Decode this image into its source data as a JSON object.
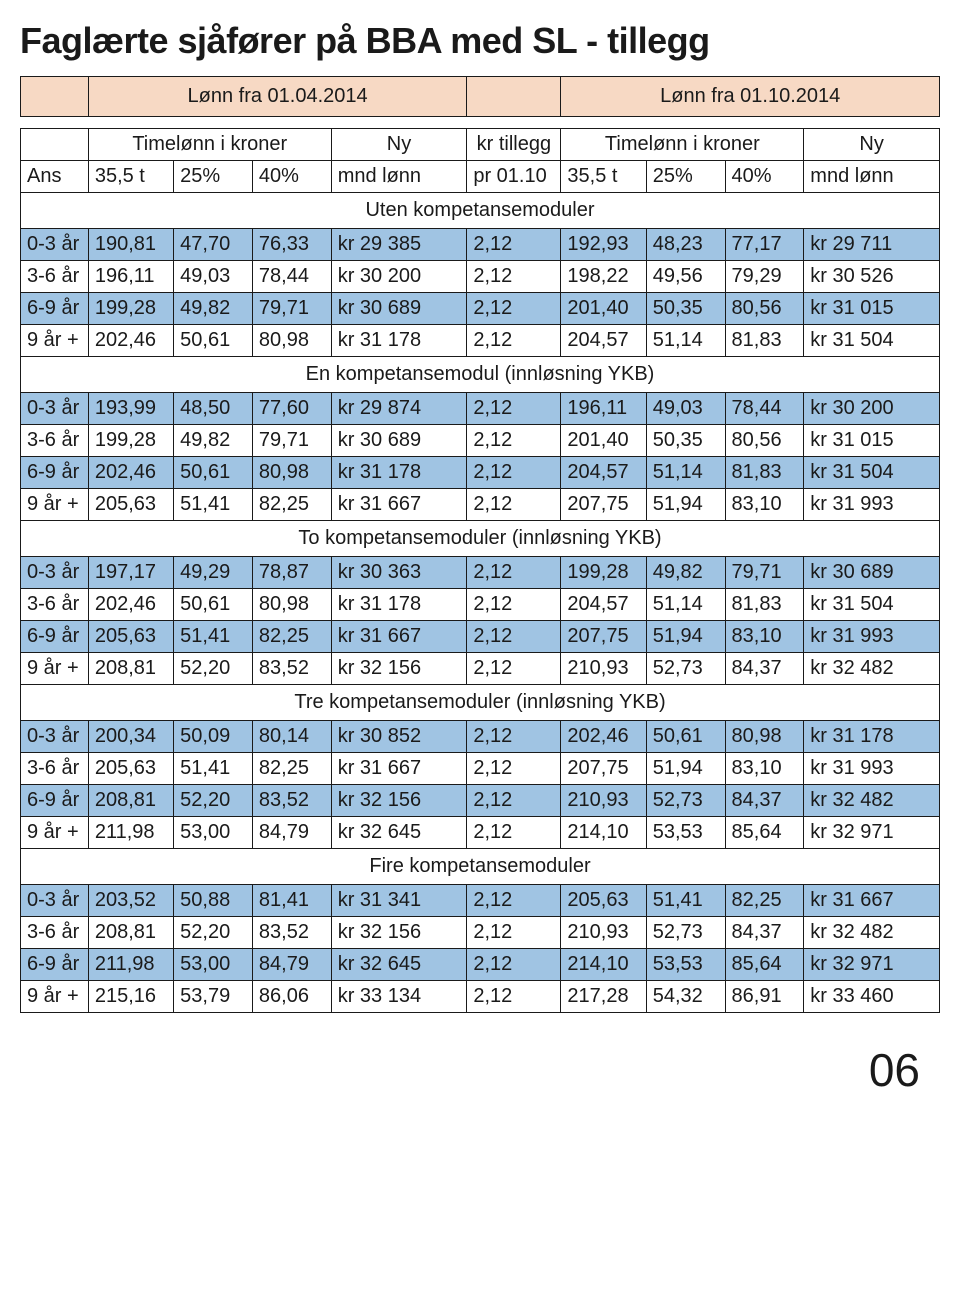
{
  "title": "Faglærte sjåfører på BBA med SL - tillegg",
  "page_number": "06",
  "colors": {
    "title_bg": "#f7d9c4",
    "band": "#a0c4e3",
    "border": "#1a1a1a",
    "text": "#1a1a1a"
  },
  "title_row": {
    "left": "Lønn fra 01.04.2014",
    "right": "Lønn fra 01.10.2014"
  },
  "header_row1": {
    "left_group": "Timelønn i kroner",
    "ny": "Ny",
    "kr_tillegg": "kr tillegg",
    "right_group": "Timelønn i kroner",
    "ny2": "Ny"
  },
  "header_row2": {
    "ans": "Ans",
    "c1": "35,5 t",
    "c2": "25%",
    "c3": "40%",
    "c4": "mnd lønn",
    "c5": "pr 01.10",
    "c6": "35,5 t",
    "c7": "25%",
    "c8": "40%",
    "c9": "mnd lønn"
  },
  "sections": [
    {
      "label": "Uten kompetansemoduler",
      "rows": [
        {
          "ans": "0-3 år",
          "a": "190,81",
          "b": "47,70",
          "c": "76,33",
          "d": "kr 29 385",
          "e": "2,12",
          "f": "192,93",
          "g": "48,23",
          "h": "77,17",
          "i": "kr 29 711"
        },
        {
          "ans": "3-6 år",
          "a": "196,11",
          "b": "49,03",
          "c": "78,44",
          "d": "kr 30 200",
          "e": "2,12",
          "f": "198,22",
          "g": "49,56",
          "h": "79,29",
          "i": "kr 30 526"
        },
        {
          "ans": "6-9 år",
          "a": "199,28",
          "b": "49,82",
          "c": "79,71",
          "d": "kr 30 689",
          "e": "2,12",
          "f": "201,40",
          "g": "50,35",
          "h": "80,56",
          "i": "kr 31 015"
        },
        {
          "ans": "9 år +",
          "a": "202,46",
          "b": "50,61",
          "c": "80,98",
          "d": "kr 31 178",
          "e": "2,12",
          "f": "204,57",
          "g": "51,14",
          "h": "81,83",
          "i": "kr 31 504"
        }
      ]
    },
    {
      "label": "En kompetansemodul (innløsning YKB)",
      "rows": [
        {
          "ans": "0-3 år",
          "a": "193,99",
          "b": "48,50",
          "c": "77,60",
          "d": "kr 29 874",
          "e": "2,12",
          "f": "196,11",
          "g": "49,03",
          "h": "78,44",
          "i": "kr 30 200"
        },
        {
          "ans": "3-6 år",
          "a": "199,28",
          "b": "49,82",
          "c": "79,71",
          "d": "kr 30 689",
          "e": "2,12",
          "f": "201,40",
          "g": "50,35",
          "h": "80,56",
          "i": "kr 31 015"
        },
        {
          "ans": "6-9 år",
          "a": "202,46",
          "b": "50,61",
          "c": "80,98",
          "d": "kr 31 178",
          "e": "2,12",
          "f": "204,57",
          "g": "51,14",
          "h": "81,83",
          "i": "kr 31 504"
        },
        {
          "ans": "9 år +",
          "a": "205,63",
          "b": "51,41",
          "c": "82,25",
          "d": "kr 31 667",
          "e": "2,12",
          "f": "207,75",
          "g": "51,94",
          "h": "83,10",
          "i": "kr 31 993"
        }
      ]
    },
    {
      "label": "To kompetansemoduler (innløsning YKB)",
      "rows": [
        {
          "ans": "0-3 år",
          "a": "197,17",
          "b": "49,29",
          "c": "78,87",
          "d": "kr 30 363",
          "e": "2,12",
          "f": "199,28",
          "g": "49,82",
          "h": "79,71",
          "i": "kr 30 689"
        },
        {
          "ans": "3-6 år",
          "a": "202,46",
          "b": "50,61",
          "c": "80,98",
          "d": "kr 31 178",
          "e": "2,12",
          "f": "204,57",
          "g": "51,14",
          "h": "81,83",
          "i": "kr 31 504"
        },
        {
          "ans": "6-9 år",
          "a": "205,63",
          "b": "51,41",
          "c": "82,25",
          "d": "kr 31 667",
          "e": "2,12",
          "f": "207,75",
          "g": "51,94",
          "h": "83,10",
          "i": "kr 31 993"
        },
        {
          "ans": "9 år +",
          "a": "208,81",
          "b": "52,20",
          "c": "83,52",
          "d": "kr 32 156",
          "e": "2,12",
          "f": "210,93",
          "g": "52,73",
          "h": "84,37",
          "i": "kr 32 482"
        }
      ]
    },
    {
      "label": "Tre kompetansemoduler (innløsning YKB)",
      "rows": [
        {
          "ans": "0-3 år",
          "a": "200,34",
          "b": "50,09",
          "c": "80,14",
          "d": "kr 30 852",
          "e": "2,12",
          "f": "202,46",
          "g": "50,61",
          "h": "80,98",
          "i": "kr 31 178"
        },
        {
          "ans": "3-6 år",
          "a": "205,63",
          "b": "51,41",
          "c": "82,25",
          "d": "kr 31 667",
          "e": "2,12",
          "f": "207,75",
          "g": "51,94",
          "h": "83,10",
          "i": "kr 31 993"
        },
        {
          "ans": "6-9 år",
          "a": "208,81",
          "b": "52,20",
          "c": "83,52",
          "d": "kr 32 156",
          "e": "2,12",
          "f": "210,93",
          "g": "52,73",
          "h": "84,37",
          "i": "kr 32 482"
        },
        {
          "ans": "9 år +",
          "a": "211,98",
          "b": "53,00",
          "c": "84,79",
          "d": "kr 32 645",
          "e": "2,12",
          "f": "214,10",
          "g": "53,53",
          "h": "85,64",
          "i": "kr 32 971"
        }
      ]
    },
    {
      "label": "Fire kompetansemoduler",
      "rows": [
        {
          "ans": "0-3 år",
          "a": "203,52",
          "b": "50,88",
          "c": "81,41",
          "d": "kr 31 341",
          "e": "2,12",
          "f": "205,63",
          "g": "51,41",
          "h": "82,25",
          "i": "kr 31 667"
        },
        {
          "ans": "3-6 år",
          "a": "208,81",
          "b": "52,20",
          "c": "83,52",
          "d": "kr 32 156",
          "e": "2,12",
          "f": "210,93",
          "g": "52,73",
          "h": "84,37",
          "i": "kr 32 482"
        },
        {
          "ans": "6-9 år",
          "a": "211,98",
          "b": "53,00",
          "c": "84,79",
          "d": "kr 32 645",
          "e": "2,12",
          "f": "214,10",
          "g": "53,53",
          "h": "85,64",
          "i": "kr 32 971"
        },
        {
          "ans": "9 år +",
          "a": "215,16",
          "b": "53,79",
          "c": "86,06",
          "d": "kr 33 134",
          "e": "2,12",
          "f": "217,28",
          "g": "54,32",
          "h": "86,91",
          "i": "kr 33 460"
        }
      ]
    }
  ]
}
